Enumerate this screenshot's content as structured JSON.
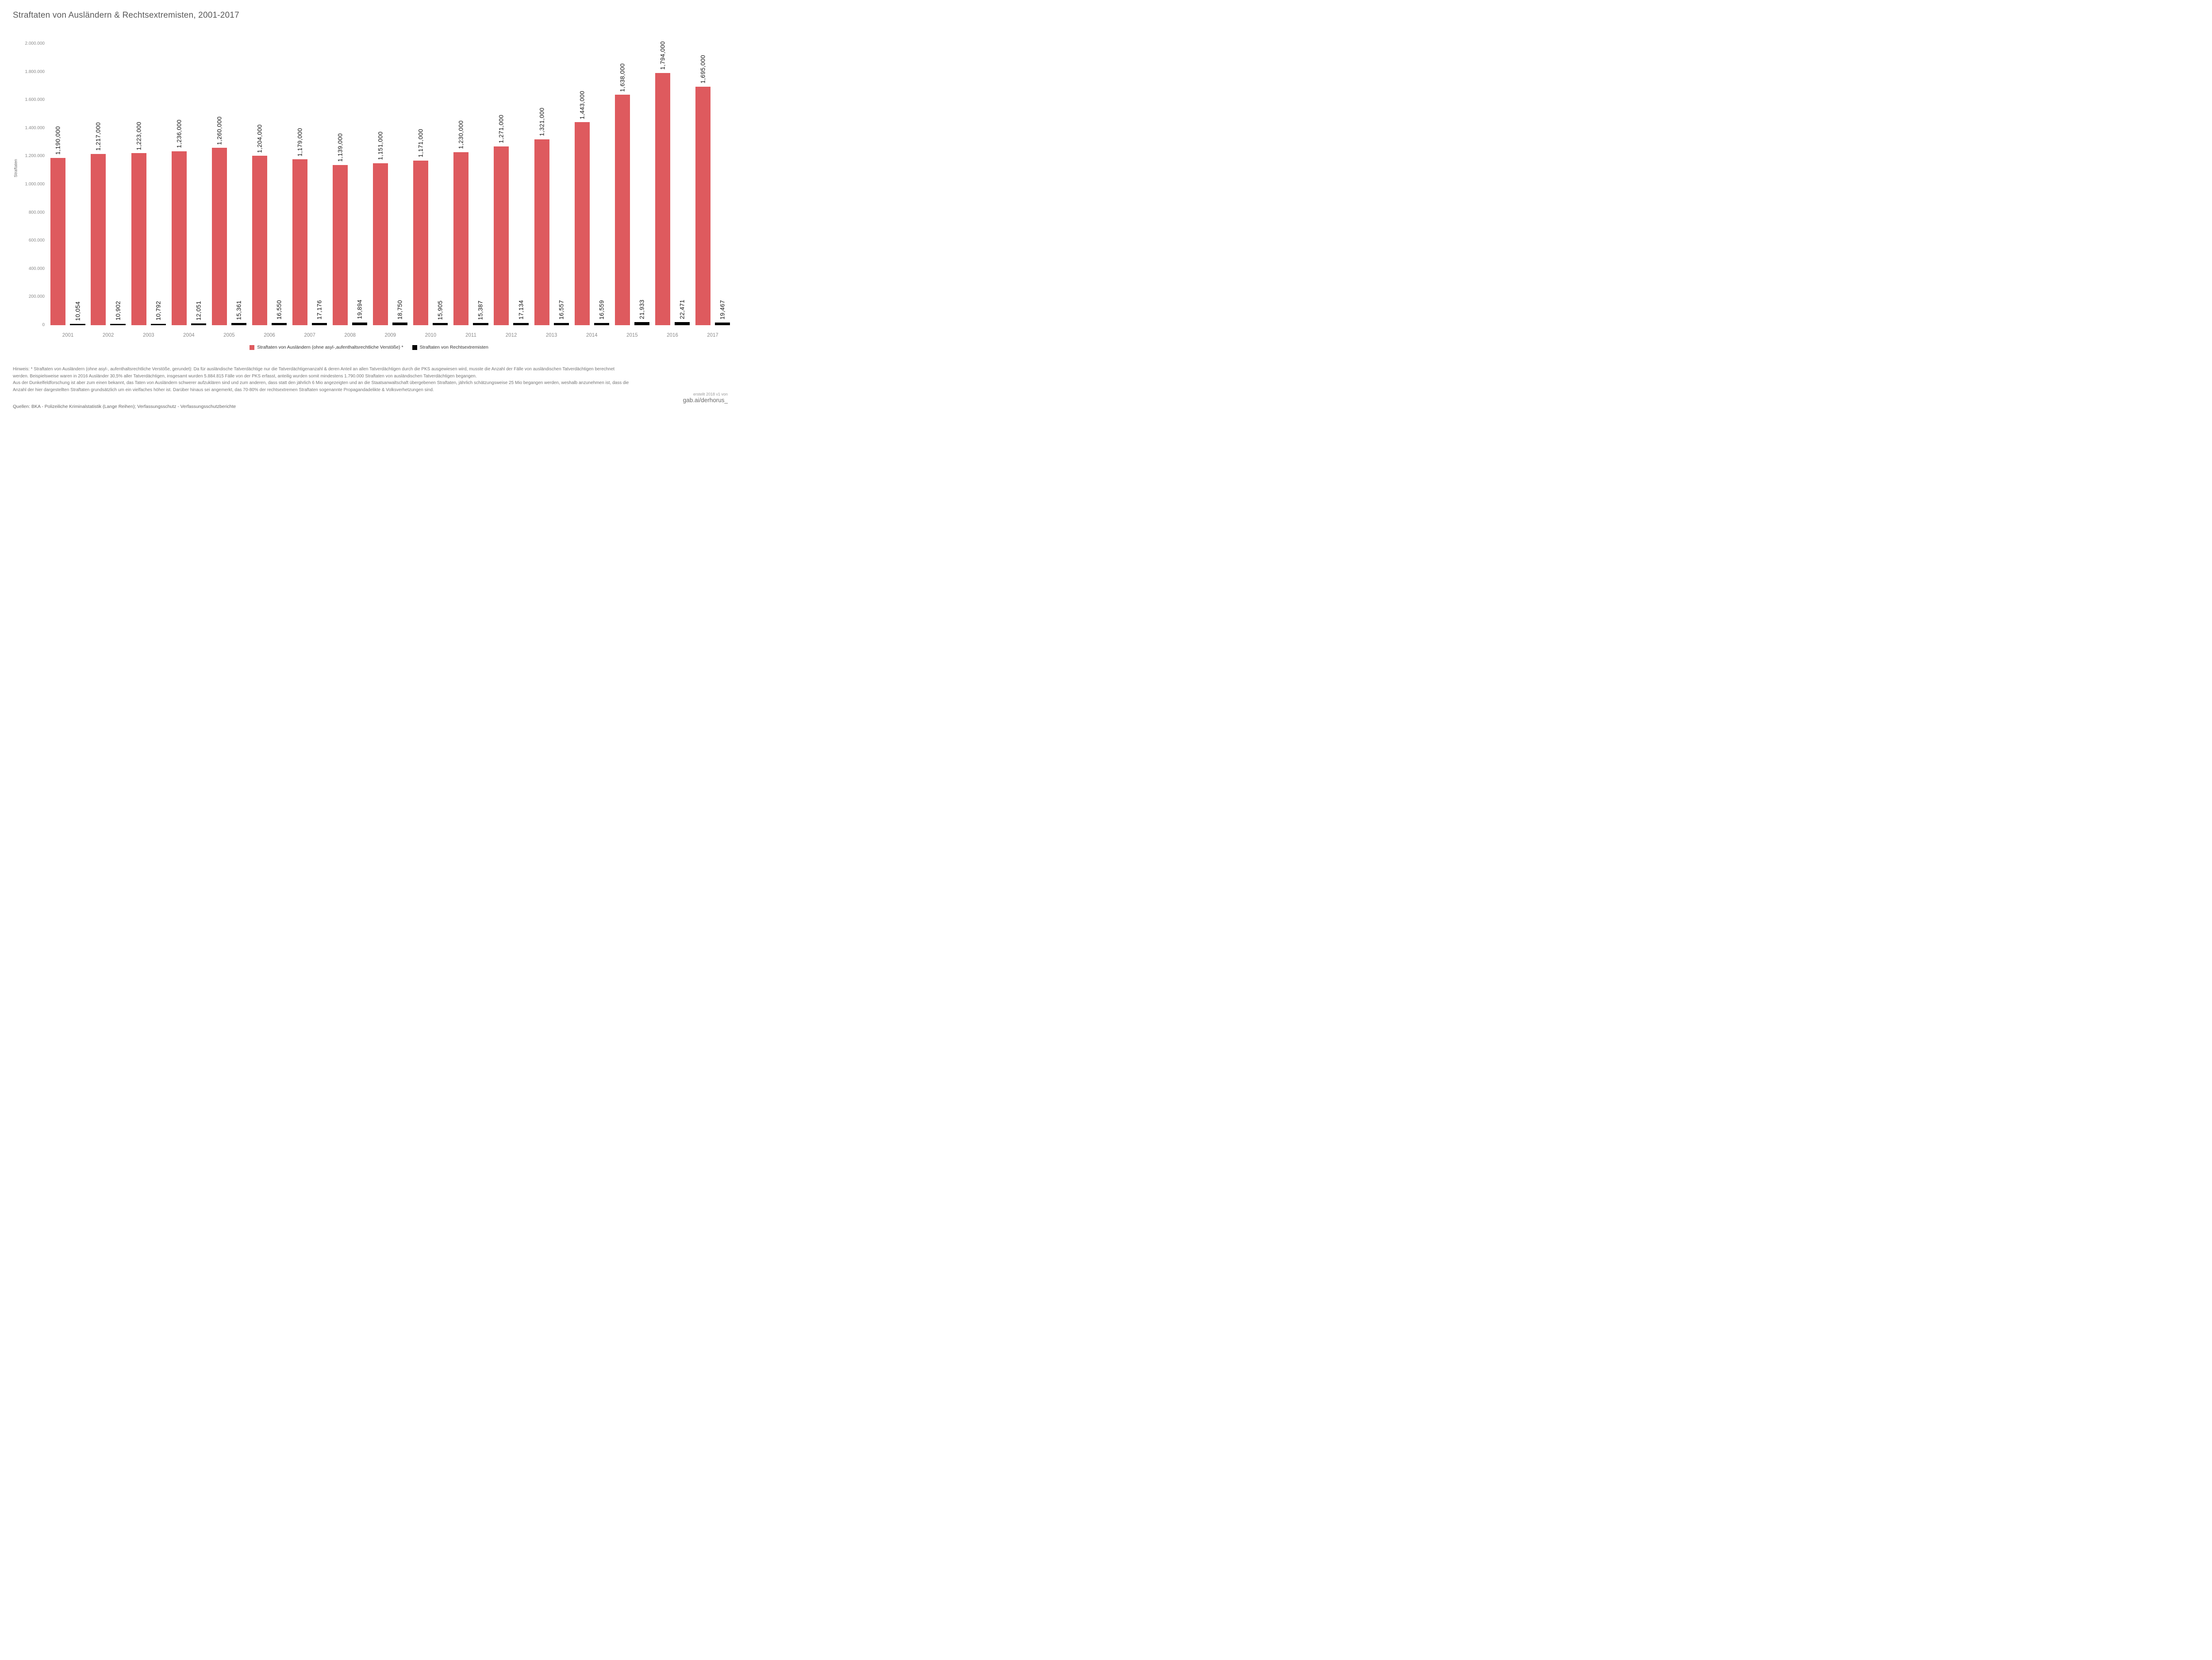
{
  "title": "Straftaten von Ausländern & Rechtsextremisten, 2001-2017",
  "chart_data": {
    "type": "bar",
    "title": "Straftaten von Ausländern & Rechtsextremisten, 2001-2017",
    "categories": [
      "2001",
      "2002",
      "2003",
      "2004",
      "2005",
      "2006",
      "2007",
      "2008",
      "2009",
      "2010",
      "2011",
      "2012",
      "2013",
      "2014",
      "2015",
      "2016",
      "2017"
    ],
    "series": [
      {
        "name": "Straftaten von Ausländern (ohne asyl-,aufenthaltsrechtliche Verstöße) *",
        "color": "#DE5A5E",
        "values": [
          1190000,
          1217000,
          1223000,
          1236000,
          1260000,
          1204000,
          1179000,
          1139000,
          1151000,
          1171000,
          1230000,
          1271000,
          1321000,
          1443000,
          1638000,
          1794000,
          1695000
        ]
      },
      {
        "name": "Straftaten von Rechtsextremisten",
        "color": "#000000",
        "values": [
          10054,
          10902,
          10792,
          12051,
          15361,
          16550,
          17176,
          19894,
          18750,
          15905,
          15387,
          17134,
          16557,
          16559,
          21933,
          22471,
          19467
        ]
      }
    ],
    "xlabel": "",
    "ylabel": "Straftaten",
    "ylim": [
      0,
      2000000
    ],
    "yticks": [
      "0",
      "200.000",
      "400.000",
      "600.000",
      "800.000",
      "1.000.000",
      "1.200.000",
      "1.400.000",
      "1.600.000",
      "1.800.000",
      "2.000.000"
    ],
    "grid": false,
    "legend_position": "bottom",
    "value_label_format": "en-US-comma"
  },
  "footnote": {
    "lines": [
      "Hinweis: * Straftaten von Ausländern (ohne asyl-, aufenthaltsrechtliche Verstöße, gerundet): Da für ausländische Tatverdächtige nur die Tatverdächtigenanzahl & deren Anteil an allen Tatverdächtigen durch die PKS ausgewiesen wird, musste die Anzahl der Fälle von ausländischen Tatverdächtigen berechnet",
      "werden. Beispielsweise waren in 2016 Ausländer 30,5% aller Tatverdächtigen, insgesamt wurden 5.884.815 Fälle von der PKS erfasst, anteilig wurden somit mindestens 1.790.000 Straftaten von ausländischen Tatverdächtigen begangen.",
      "Aus der Dunkelfeldforschung ist aber zum einen bekannt, das Taten von Ausländern schwerer aufzuklären sind und zum anderen, dass statt den jährlich 6 Mio angezeigten und an die Staatsanwaltschaft übergebenen Straftaten, jährlich schätzungsweise 25 Mio begangen werden, weshalb anzunehmen ist, dass die",
      "Anzahl der hier dargestellten Straftaten grundsätzlich um ein vielfaches höher ist. Darüber hinaus sei angemerkt, das 70-80% der rechtsextremen Straftaten sogenannte Propagandadelikte & Volksverhetzungen sind."
    ]
  },
  "source_line": "Quellen: BKA - Polizeiliche Kriminalstatistik (Lange Reihen); Verfassungsschutz - Verfassungsschutzberichte",
  "credit": {
    "line1": "erstellt 2018 v1 von",
    "line2": "gab.ai/derhorus_"
  }
}
